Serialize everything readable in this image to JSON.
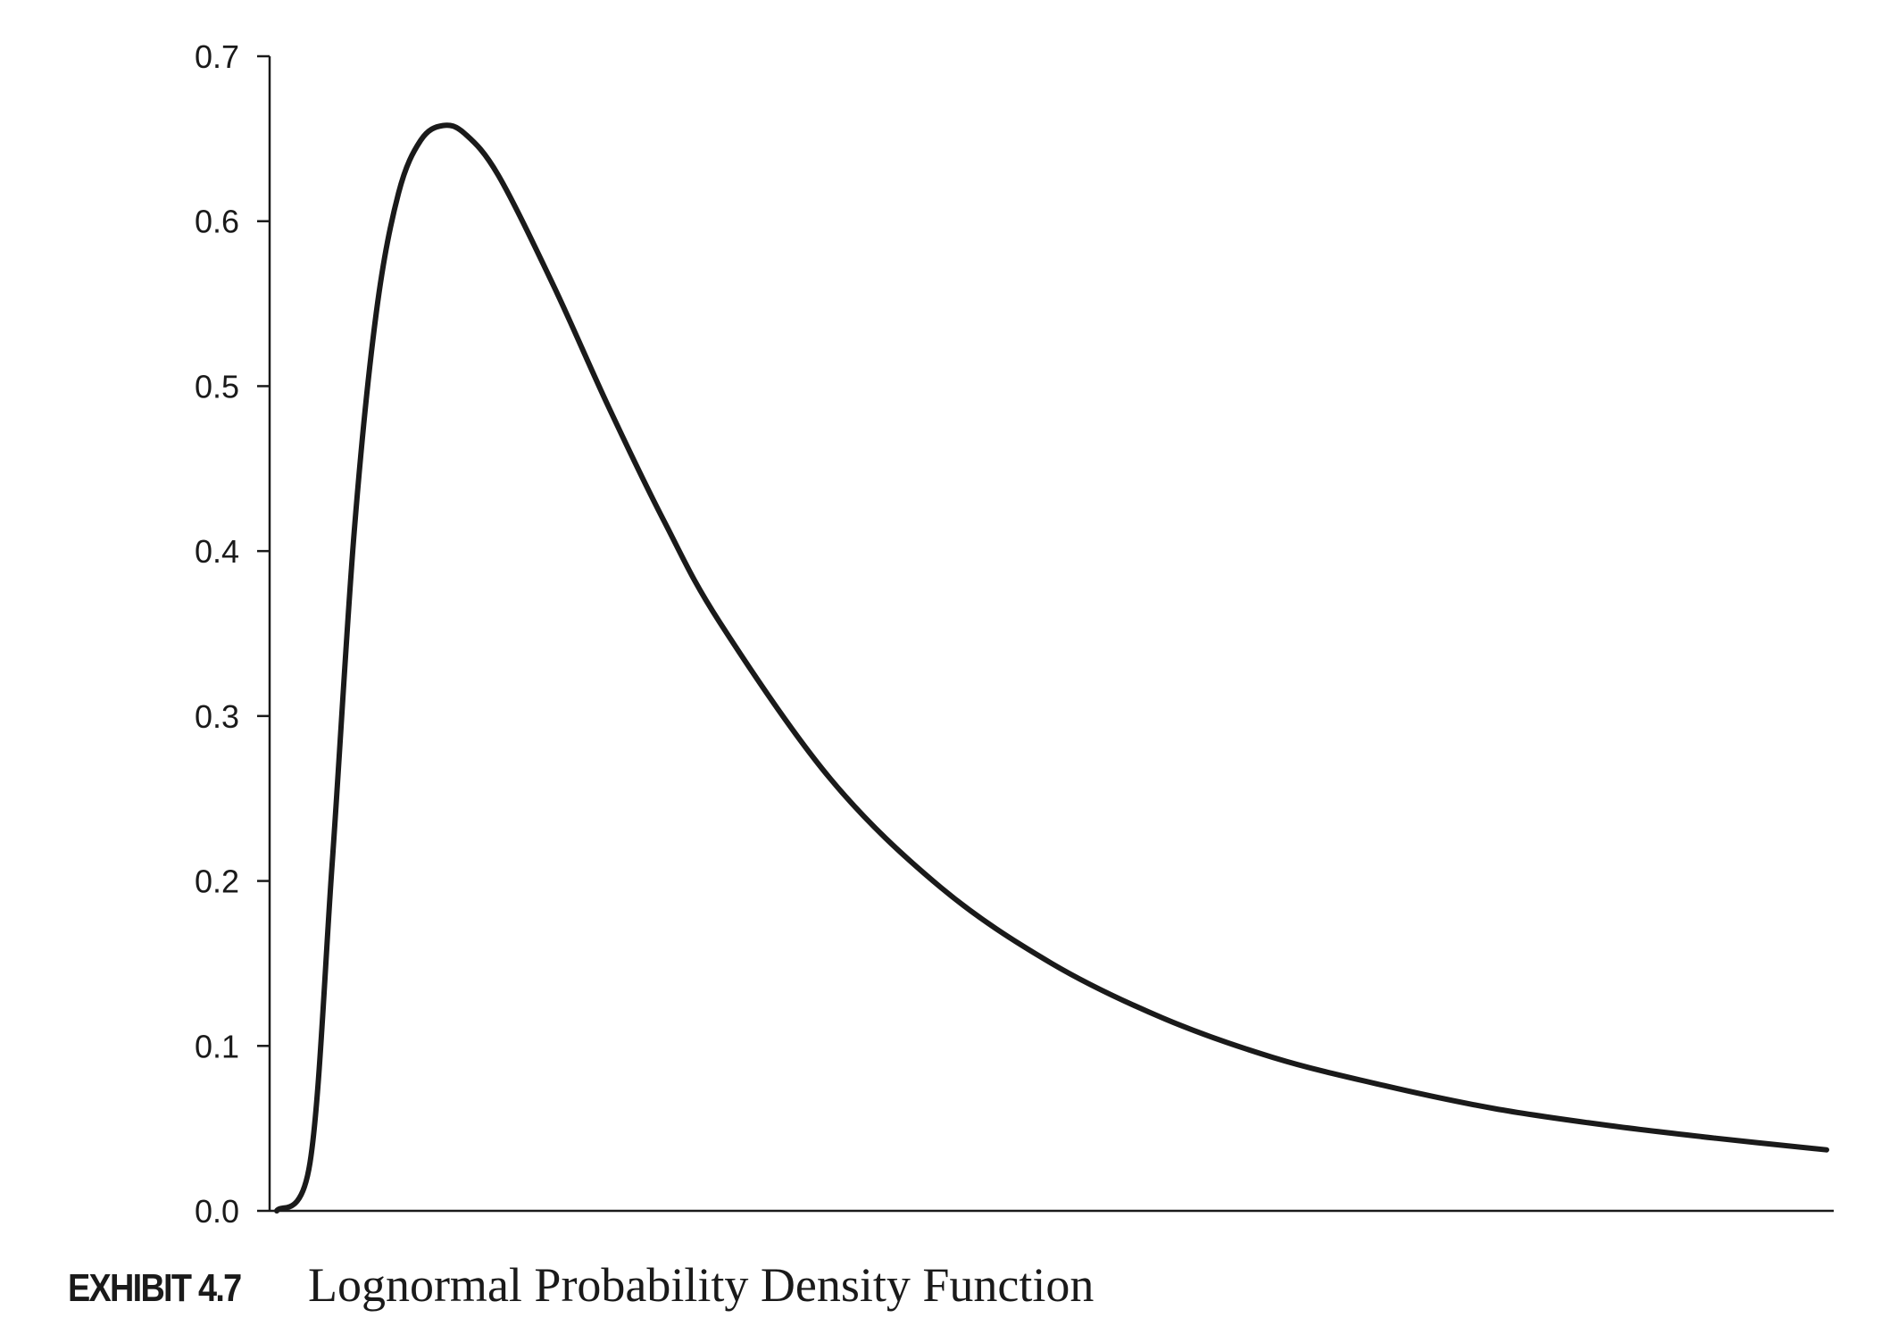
{
  "chart_data": {
    "type": "line",
    "title": "",
    "xlabel": "",
    "ylabel": "",
    "ylim": [
      0.0,
      0.7
    ],
    "yticks": [
      "0.0",
      "0.1",
      "0.2",
      "0.3",
      "0.4",
      "0.5",
      "0.6",
      "0.7"
    ],
    "xticks": [],
    "grid": false,
    "legend": "none",
    "line_color": "#1a1a1a",
    "series": [
      {
        "values": [
          [
            0.0,
            0.0
          ],
          [
            0.03,
            0.029
          ],
          [
            0.05,
            0.21
          ],
          [
            0.07,
            0.412
          ],
          [
            0.09,
            0.545
          ],
          [
            0.11,
            0.617
          ],
          [
            0.13,
            0.649
          ],
          [
            0.15,
            0.658
          ],
          [
            0.17,
            0.653
          ],
          [
            0.2,
            0.628
          ],
          [
            0.25,
            0.561
          ],
          [
            0.3,
            0.487
          ],
          [
            0.35,
            0.418
          ],
          [
            0.4,
            0.357
          ],
          [
            0.5,
            0.262
          ],
          [
            0.6,
            0.196
          ],
          [
            0.7,
            0.15
          ],
          [
            0.8,
            0.117
          ],
          [
            0.9,
            0.093
          ],
          [
            1.0,
            0.076
          ],
          [
            1.1,
            0.062
          ],
          [
            1.2,
            0.052
          ],
          [
            1.3,
            0.044
          ],
          [
            1.4,
            0.037
          ]
        ]
      }
    ]
  },
  "caption": {
    "label": "EXHIBIT 4.7",
    "title": "Lognormal Probability Density Function"
  }
}
